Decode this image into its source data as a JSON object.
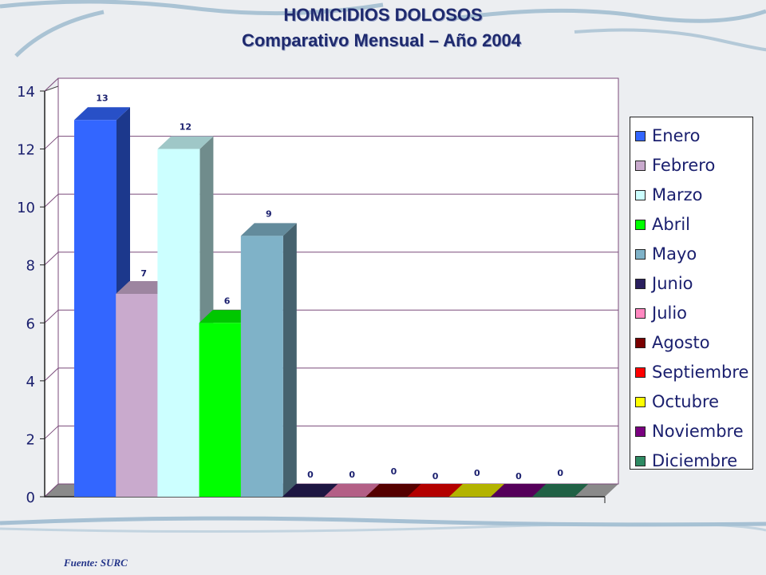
{
  "chart_data": {
    "type": "bar",
    "title": "HOMICIDIOS DOLOSOS",
    "subtitle": "Comparativo Mensual – Año 2004",
    "categories": [
      "Enero",
      "Febrero",
      "Marzo",
      "Abril",
      "Mayo",
      "Junio",
      "Julio",
      "Agosto",
      "Septiembre",
      "Octubre",
      "Noviembre",
      "Diciembre"
    ],
    "values": [
      13,
      7,
      12,
      6,
      9,
      0,
      0,
      0,
      0,
      0,
      0,
      0
    ],
    "colors": [
      "#3366ff",
      "#c9aacd",
      "#ccffff",
      "#00ff00",
      "#7fb2c8",
      "#2a1f5e",
      "#ff88c0",
      "#7a0000",
      "#ff0000",
      "#ffff00",
      "#7a0080",
      "#2e8a63"
    ],
    "ylim": [
      0,
      14
    ],
    "yticks": [
      "0",
      "2",
      "4",
      "6",
      "8",
      "10",
      "12",
      "14"
    ],
    "xlabel": "",
    "ylabel": "",
    "grid": true,
    "legend_position": "right",
    "style": "3d-bar"
  },
  "footer": {
    "source": "Fuente: SURC"
  }
}
